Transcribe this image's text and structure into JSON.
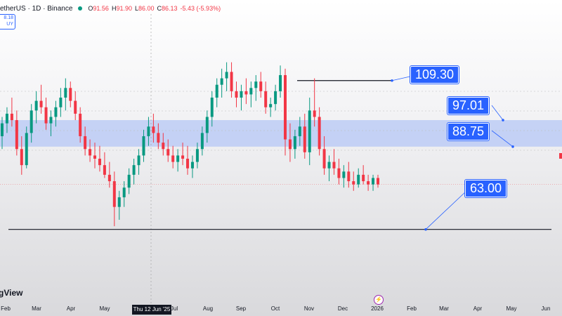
{
  "header": {
    "symbol": "etherUS · 1D · Binance",
    "open_label": "O",
    "open": "91.56",
    "high_label": "H",
    "high": "91.90",
    "low_label": "L",
    "low": "86.00",
    "close_label": "C",
    "close": "86.13",
    "change": "-5.43 (-5.93%)"
  },
  "buy_box": {
    "price": "8.18",
    "label": "UY"
  },
  "logo_text": "gView",
  "crosshair_date": "Thu 12 Jun '25",
  "time_axis": [
    "Feb",
    "Mar",
    "Apr",
    "May",
    "Jul",
    "Aug",
    "Sep",
    "Oct",
    "Nov",
    "Dec",
    "2026",
    "Feb",
    "Mar",
    "Apr",
    "May",
    "Jun"
  ],
  "price_labels": [
    "109.30",
    "97.01",
    "88.75",
    "63.00"
  ],
  "colors": {
    "accent": "#2962ff",
    "down": "#f23645",
    "up": "#089981",
    "zone": "#b5c7f5"
  },
  "chart_data": {
    "type": "candlestick",
    "candles": [
      {
        "o": 92,
        "h": 98,
        "l": 88,
        "c": 96
      },
      {
        "o": 96,
        "h": 101,
        "l": 93,
        "c": 99
      },
      {
        "o": 99,
        "h": 104,
        "l": 95,
        "c": 97
      },
      {
        "o": 97,
        "h": 100,
        "l": 86,
        "c": 88
      },
      {
        "o": 88,
        "h": 92,
        "l": 80,
        "c": 83
      },
      {
        "o": 83,
        "h": 95,
        "l": 82,
        "c": 93
      },
      {
        "o": 93,
        "h": 102,
        "l": 90,
        "c": 100
      },
      {
        "o": 100,
        "h": 106,
        "l": 96,
        "c": 103
      },
      {
        "o": 103,
        "h": 108,
        "l": 99,
        "c": 101
      },
      {
        "o": 101,
        "h": 104,
        "l": 94,
        "c": 96
      },
      {
        "o": 96,
        "h": 100,
        "l": 92,
        "c": 98
      },
      {
        "o": 98,
        "h": 103,
        "l": 95,
        "c": 101
      },
      {
        "o": 101,
        "h": 107,
        "l": 98,
        "c": 104
      },
      {
        "o": 104,
        "h": 110,
        "l": 100,
        "c": 107
      },
      {
        "o": 107,
        "h": 109,
        "l": 101,
        "c": 103
      },
      {
        "o": 103,
        "h": 106,
        "l": 97,
        "c": 99
      },
      {
        "o": 99,
        "h": 101,
        "l": 90,
        "c": 92
      },
      {
        "o": 92,
        "h": 95,
        "l": 86,
        "c": 88
      },
      {
        "o": 88,
        "h": 91,
        "l": 84,
        "c": 86
      },
      {
        "o": 86,
        "h": 90,
        "l": 82,
        "c": 85
      },
      {
        "o": 85,
        "h": 89,
        "l": 81,
        "c": 83
      },
      {
        "o": 83,
        "h": 87,
        "l": 79,
        "c": 80
      },
      {
        "o": 80,
        "h": 84,
        "l": 76,
        "c": 78
      },
      {
        "o": 78,
        "h": 81,
        "l": 64,
        "c": 70
      },
      {
        "o": 70,
        "h": 75,
        "l": 66,
        "c": 73
      },
      {
        "o": 73,
        "h": 78,
        "l": 70,
        "c": 76
      },
      {
        "o": 76,
        "h": 82,
        "l": 74,
        "c": 80
      },
      {
        "o": 80,
        "h": 85,
        "l": 77,
        "c": 83
      },
      {
        "o": 83,
        "h": 88,
        "l": 80,
        "c": 86
      },
      {
        "o": 86,
        "h": 94,
        "l": 84,
        "c": 92
      },
      {
        "o": 92,
        "h": 98,
        "l": 89,
        "c": 95
      },
      {
        "o": 95,
        "h": 99,
        "l": 90,
        "c": 93
      },
      {
        "o": 93,
        "h": 96,
        "l": 88,
        "c": 90
      },
      {
        "o": 90,
        "h": 93,
        "l": 86,
        "c": 88
      },
      {
        "o": 88,
        "h": 91,
        "l": 84,
        "c": 86
      },
      {
        "o": 86,
        "h": 89,
        "l": 82,
        "c": 84
      },
      {
        "o": 84,
        "h": 88,
        "l": 81,
        "c": 86
      },
      {
        "o": 86,
        "h": 90,
        "l": 83,
        "c": 85
      },
      {
        "o": 85,
        "h": 89,
        "l": 80,
        "c": 82
      },
      {
        "o": 82,
        "h": 86,
        "l": 79,
        "c": 84
      },
      {
        "o": 84,
        "h": 90,
        "l": 82,
        "c": 88
      },
      {
        "o": 88,
        "h": 95,
        "l": 86,
        "c": 93
      },
      {
        "o": 93,
        "h": 100,
        "l": 90,
        "c": 98
      },
      {
        "o": 98,
        "h": 106,
        "l": 95,
        "c": 104
      },
      {
        "o": 104,
        "h": 110,
        "l": 101,
        "c": 108
      },
      {
        "o": 108,
        "h": 113,
        "l": 104,
        "c": 110
      },
      {
        "o": 110,
        "h": 115,
        "l": 106,
        "c": 112
      },
      {
        "o": 112,
        "h": 115,
        "l": 104,
        "c": 106
      },
      {
        "o": 106,
        "h": 109,
        "l": 101,
        "c": 104
      },
      {
        "o": 104,
        "h": 108,
        "l": 100,
        "c": 106
      },
      {
        "o": 106,
        "h": 110,
        "l": 102,
        "c": 105
      },
      {
        "o": 105,
        "h": 109,
        "l": 101,
        "c": 107
      },
      {
        "o": 107,
        "h": 111,
        "l": 103,
        "c": 109
      },
      {
        "o": 109,
        "h": 112,
        "l": 104,
        "c": 106
      },
      {
        "o": 106,
        "h": 109,
        "l": 99,
        "c": 101
      },
      {
        "o": 101,
        "h": 104,
        "l": 98,
        "c": 102
      },
      {
        "o": 102,
        "h": 108,
        "l": 100,
        "c": 106
      },
      {
        "o": 106,
        "h": 114,
        "l": 104,
        "c": 111
      },
      {
        "o": 111,
        "h": 113,
        "l": 86,
        "c": 91
      },
      {
        "o": 91,
        "h": 96,
        "l": 84,
        "c": 88
      },
      {
        "o": 88,
        "h": 94,
        "l": 85,
        "c": 92
      },
      {
        "o": 92,
        "h": 98,
        "l": 89,
        "c": 95
      },
      {
        "o": 95,
        "h": 99,
        "l": 85,
        "c": 87
      },
      {
        "o": 87,
        "h": 104,
        "l": 83,
        "c": 100
      },
      {
        "o": 100,
        "h": 110,
        "l": 95,
        "c": 98
      },
      {
        "o": 98,
        "h": 101,
        "l": 86,
        "c": 88
      },
      {
        "o": 88,
        "h": 92,
        "l": 80,
        "c": 82
      },
      {
        "o": 82,
        "h": 86,
        "l": 78,
        "c": 84
      },
      {
        "o": 84,
        "h": 88,
        "l": 80,
        "c": 82
      },
      {
        "o": 82,
        "h": 85,
        "l": 77,
        "c": 79
      },
      {
        "o": 79,
        "h": 83,
        "l": 76,
        "c": 81
      },
      {
        "o": 81,
        "h": 84,
        "l": 76,
        "c": 78
      },
      {
        "o": 78,
        "h": 81,
        "l": 75,
        "c": 77
      },
      {
        "o": 77,
        "h": 82,
        "l": 76,
        "c": 80
      },
      {
        "o": 80,
        "h": 83,
        "l": 77,
        "c": 78
      },
      {
        "o": 78,
        "h": 80,
        "l": 75,
        "c": 77
      },
      {
        "o": 77,
        "h": 80,
        "l": 75,
        "c": 79
      },
      {
        "o": 79,
        "h": 80,
        "l": 76,
        "c": 77
      }
    ],
    "ylim": [
      40,
      130
    ],
    "horizontal_lines": [
      {
        "value": 109.3,
        "label": "109.30"
      },
      {
        "value": 63.0,
        "label": "63.00"
      }
    ],
    "zone": {
      "from": 88.75,
      "to": 97.01
    }
  }
}
